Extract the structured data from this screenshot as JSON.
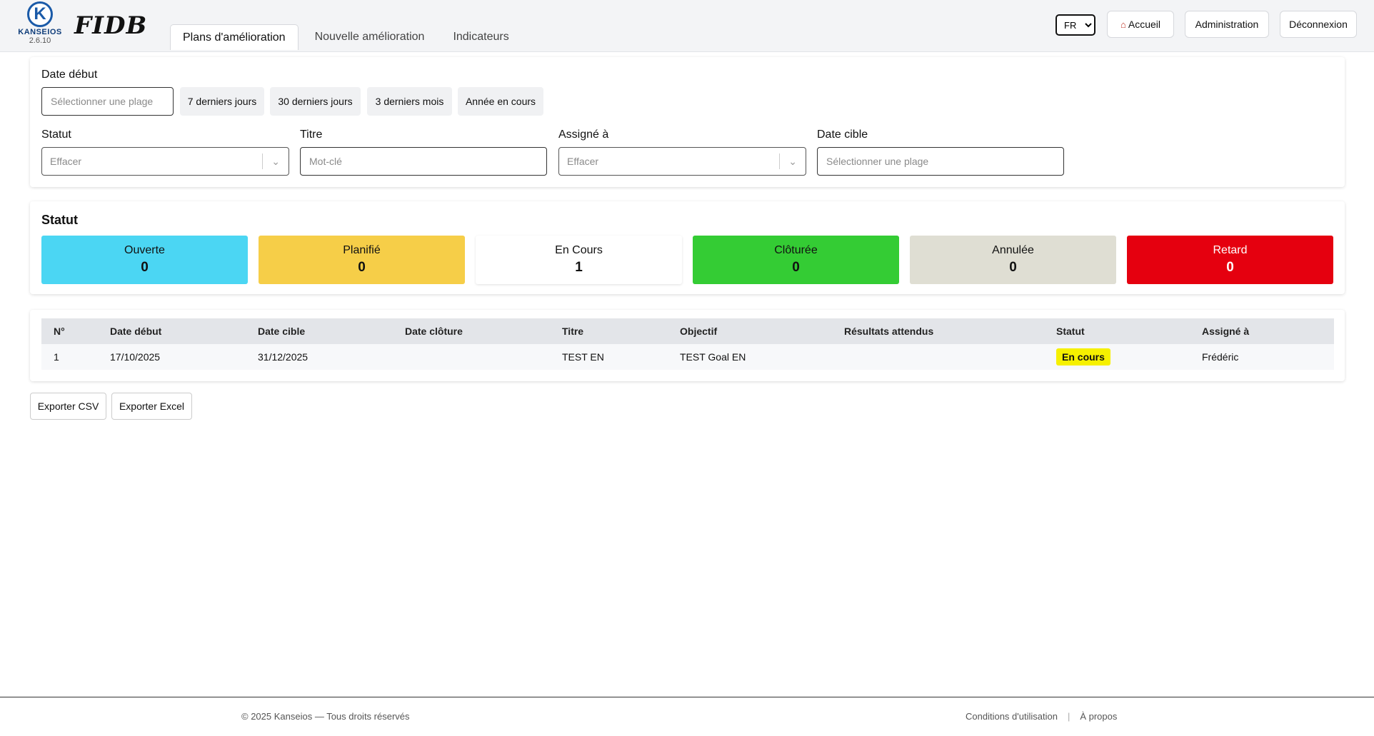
{
  "header": {
    "brand": "KANSEIOS",
    "version": "2.6.10",
    "fidb_logo": "FIDB",
    "tabs": [
      {
        "label": "Plans d'amélioration"
      },
      {
        "label": "Nouvelle amélioration"
      },
      {
        "label": "Indicateurs"
      }
    ],
    "language": "FR",
    "buttons": {
      "home": "Accueil",
      "admin": "Administration",
      "logout": "Déconnexion"
    }
  },
  "filters": {
    "date_debut_label": "Date début",
    "date_debut_placeholder": "Sélectionner une plage",
    "presets": [
      "7 derniers jours",
      "30 derniers jours",
      "3 derniers mois",
      "Année en cours"
    ],
    "statut_label": "Statut",
    "statut_value": "Effacer",
    "titre_label": "Titre",
    "titre_placeholder": "Mot-clé",
    "assigne_label": "Assigné à",
    "assigne_value": "Effacer",
    "date_cible_label": "Date cible",
    "date_cible_placeholder": "Sélectionner une plage"
  },
  "status": {
    "title": "Statut",
    "items": [
      {
        "label": "Ouverte",
        "count": "0",
        "color": "#4bd6f3"
      },
      {
        "label": "Planifié",
        "count": "0",
        "color": "#f6ce48"
      },
      {
        "label": "En Cours",
        "count": "1",
        "color": "#ffffff"
      },
      {
        "label": "Clôturée",
        "count": "0",
        "color": "#34cc34"
      },
      {
        "label": "Annulée",
        "count": "0",
        "color": "#dfded3"
      },
      {
        "label": "Retard",
        "count": "0",
        "color": "#e5000f"
      }
    ]
  },
  "table": {
    "headers": [
      "N°",
      "Date début",
      "Date cible",
      "Date clôture",
      "Titre",
      "Objectif",
      "Résultats attendus",
      "Statut",
      "Assigné à"
    ],
    "rows": [
      {
        "num": "1",
        "date_debut": "17/10/2025",
        "date_cible": "31/12/2025",
        "date_cloture": "",
        "titre": "TEST EN",
        "objectif": "TEST Goal EN",
        "resultats": "",
        "statut": "En cours",
        "assigne": "Frédéric"
      }
    ]
  },
  "exports": {
    "csv": "Exporter CSV",
    "excel": "Exporter Excel"
  },
  "footer": {
    "copyright": "© 2025 Kanseios — Tous droits réservés",
    "terms": "Conditions d'utilisation",
    "separator": "|",
    "about": "À propos"
  }
}
